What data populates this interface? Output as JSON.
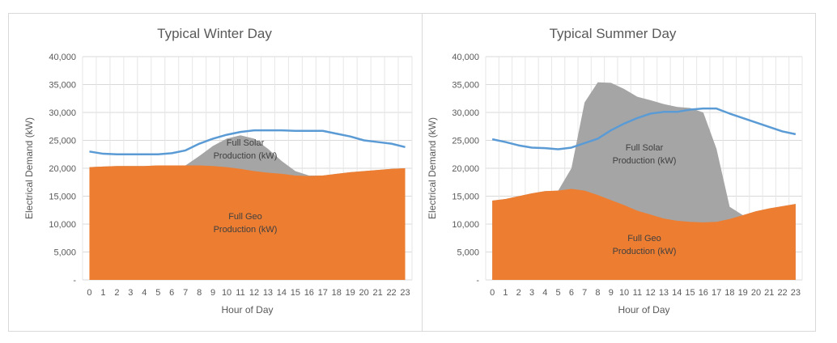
{
  "chart_data": [
    {
      "type": "area",
      "title": "Typical Winter Day",
      "xlabel": "Hour of Day",
      "ylabel": "Electrical Demand (kW)",
      "ylim": [
        0,
        40000
      ],
      "yticks": [
        "-",
        "5,000",
        "10,000",
        "15,000",
        "20,000",
        "25,000",
        "30,000",
        "35,000",
        "40,000"
      ],
      "x": [
        0,
        1,
        2,
        3,
        4,
        5,
        6,
        7,
        8,
        9,
        10,
        11,
        12,
        13,
        14,
        15,
        16,
        17,
        18,
        19,
        20,
        21,
        22,
        23
      ],
      "geo": [
        20200,
        20300,
        20400,
        20400,
        20400,
        20500,
        20500,
        20500,
        20500,
        20400,
        20200,
        19900,
        19500,
        19200,
        19000,
        18700,
        18600,
        18700,
        19000,
        19300,
        19500,
        19700,
        19900,
        20000
      ],
      "solar_total": [
        20200,
        20300,
        20400,
        20400,
        20400,
        20500,
        20500,
        20500,
        22200,
        24000,
        25300,
        25900,
        25300,
        23500,
        21300,
        19500,
        18700,
        18700,
        19000,
        19300,
        19500,
        19700,
        19900,
        20000
      ],
      "demand": [
        23000,
        22600,
        22500,
        22500,
        22500,
        22500,
        22700,
        23200,
        24400,
        25300,
        26000,
        26500,
        26800,
        26800,
        26800,
        26700,
        26700,
        26700,
        26200,
        25700,
        25000,
        24700,
        24400,
        23800
      ],
      "annotations": {
        "solar": [
          "Full Solar",
          "Production (kW)"
        ],
        "geo": [
          "Full Geo",
          "Production (kW)"
        ]
      },
      "colors": {
        "geo": "#ed7d31",
        "solar": "#a5a5a5",
        "demand": "#5b9bd5"
      },
      "grid": true
    },
    {
      "type": "area",
      "title": "Typical Summer Day",
      "xlabel": "Hour of Day",
      "ylabel": "Electrical Demand (kW)",
      "ylim": [
        0,
        40000
      ],
      "yticks": [
        "-",
        "5,000",
        "10,000",
        "15,000",
        "20,000",
        "25,000",
        "30,000",
        "35,000",
        "40,000"
      ],
      "x": [
        0,
        1,
        2,
        3,
        4,
        5,
        6,
        7,
        8,
        9,
        10,
        11,
        12,
        13,
        14,
        15,
        16,
        17,
        18,
        19,
        20,
        21,
        22,
        23
      ],
      "geo": [
        14200,
        14500,
        15000,
        15500,
        15900,
        16000,
        16300,
        16000,
        15200,
        14300,
        13400,
        12400,
        11700,
        11000,
        10600,
        10400,
        10300,
        10400,
        10900,
        11600,
        12300,
        12800,
        13200,
        13600
      ],
      "solar_total": [
        14200,
        14500,
        15000,
        15500,
        15900,
        16000,
        20000,
        31800,
        35400,
        35300,
        34200,
        32800,
        32200,
        31500,
        31000,
        30800,
        30000,
        23500,
        13100,
        11600,
        12300,
        12800,
        13200,
        13600
      ],
      "demand": [
        25200,
        24700,
        24100,
        23700,
        23600,
        23400,
        23700,
        24500,
        25300,
        26800,
        28000,
        29000,
        29800,
        30100,
        30100,
        30500,
        30700,
        30700,
        29800,
        29000,
        28200,
        27400,
        26600,
        26100
      ],
      "annotations": {
        "solar": [
          "Full Solar",
          "Production (kW)"
        ],
        "geo": [
          "Full Geo",
          "Production (kW)"
        ]
      },
      "colors": {
        "geo": "#ed7d31",
        "solar": "#a5a5a5",
        "demand": "#5b9bd5"
      },
      "grid": true
    }
  ]
}
